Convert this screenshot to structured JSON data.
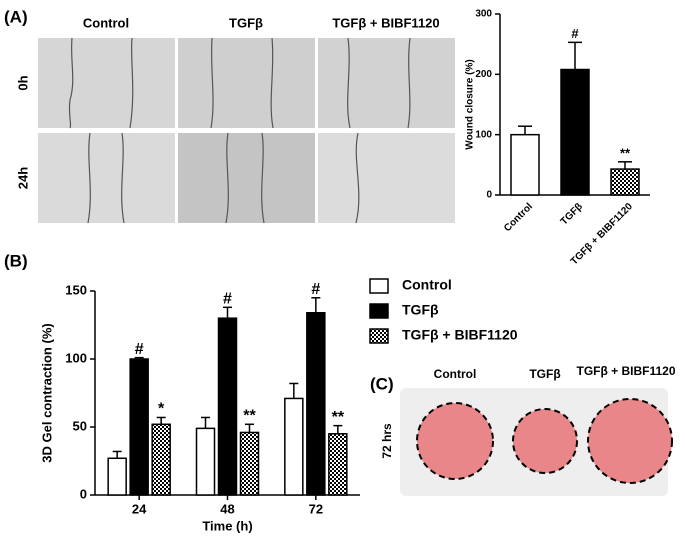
{
  "panels": {
    "a_label": "(A)",
    "b_label": "(B)",
    "c_label": "(C)",
    "a_columns": [
      "Control",
      "TGFβ",
      "TGFβ + BIBF1120"
    ],
    "a_rows": [
      "0h",
      "24h"
    ],
    "c_columns": [
      "Control",
      "TGFβ",
      "TGFβ + BIBF1120"
    ],
    "c_row": "72 hrs"
  },
  "chart_data": [
    {
      "type": "bar",
      "y_label": "Wound closure (%)",
      "categories": [
        "Control",
        "TGFβ",
        "TGFβ + BIBF1120"
      ],
      "values": [
        100,
        208,
        43
      ],
      "errors": [
        14,
        45,
        12
      ],
      "colors": [
        "#ffffff",
        "#000000",
        "#000000"
      ],
      "patterns": [
        "solid",
        "solid",
        "checker"
      ],
      "annotations": [
        null,
        "#",
        "**"
      ],
      "ylim": [
        0,
        300
      ],
      "yticks": [
        0,
        100,
        200,
        300
      ]
    },
    {
      "type": "grouped-bar",
      "x_label": "Time (h)",
      "y_label": "3D Gel contraction (%)",
      "categories": [
        "24",
        "48",
        "72"
      ],
      "series": [
        {
          "name": "Control",
          "color": "#ffffff",
          "pattern": "solid",
          "values": [
            27,
            49,
            71
          ],
          "errors": [
            5,
            8,
            11
          ],
          "annotations": [
            null,
            null,
            null
          ]
        },
        {
          "name": "TGFβ",
          "color": "#000000",
          "pattern": "solid",
          "values": [
            100,
            130,
            134
          ],
          "errors": [
            1,
            8,
            11
          ],
          "annotations": [
            "#",
            "#",
            "#"
          ]
        },
        {
          "name": "TGFβ + BIBF1120",
          "color": "#000000",
          "pattern": "checker",
          "values": [
            52,
            46,
            45
          ],
          "errors": [
            5,
            6,
            6
          ],
          "annotations": [
            "*",
            "**",
            "**"
          ]
        }
      ],
      "ylim": [
        0,
        150
      ],
      "yticks": [
        0,
        50,
        100,
        150
      ]
    }
  ]
}
